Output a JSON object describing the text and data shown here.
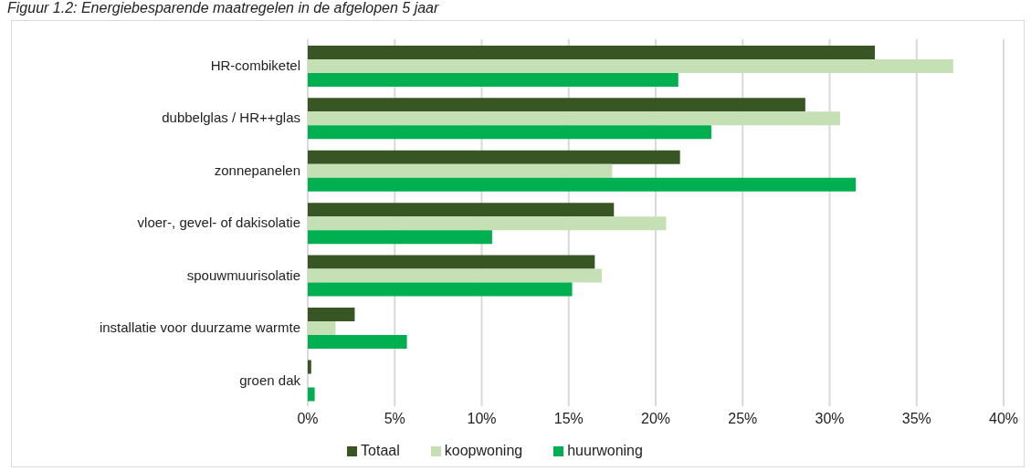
{
  "chart_data": {
    "type": "bar",
    "orientation": "horizontal",
    "title": "Figuur 1.2: Energiebesparende maatregelen in de afgelopen 5 jaar",
    "categories": [
      "HR-combiketel",
      "dubbelglas / HR++glas",
      "zonnepanelen",
      "vloer-, gevel- of dakisolatie",
      "spouwmuurisolatie",
      "installatie voor duurzame warmte",
      "groen dak"
    ],
    "series": [
      {
        "name": "Totaal",
        "color": "#375623",
        "values": [
          32.6,
          28.6,
          21.4,
          17.6,
          16.5,
          2.7,
          0.2
        ]
      },
      {
        "name": "koopwoning",
        "color": "#c5e0b4",
        "values": [
          37.1,
          30.6,
          17.5,
          20.6,
          16.9,
          1.6,
          null
        ]
      },
      {
        "name": "huurwoning",
        "color": "#00b050",
        "values": [
          21.3,
          23.2,
          31.5,
          10.6,
          15.2,
          5.7,
          0.4
        ]
      }
    ],
    "xlim": [
      0,
      40
    ],
    "xticks": [
      {
        "value": 0,
        "label": "0%"
      },
      {
        "value": 5,
        "label": "5%"
      },
      {
        "value": 10,
        "label": "10%"
      },
      {
        "value": 15,
        "label": "15%"
      },
      {
        "value": 20,
        "label": "20%"
      },
      {
        "value": 25,
        "label": "25%"
      },
      {
        "value": 30,
        "label": "30%"
      },
      {
        "value": 35,
        "label": "35%"
      },
      {
        "value": 40,
        "label": "40%"
      }
    ],
    "grid": "x",
    "legend": "bottom"
  }
}
